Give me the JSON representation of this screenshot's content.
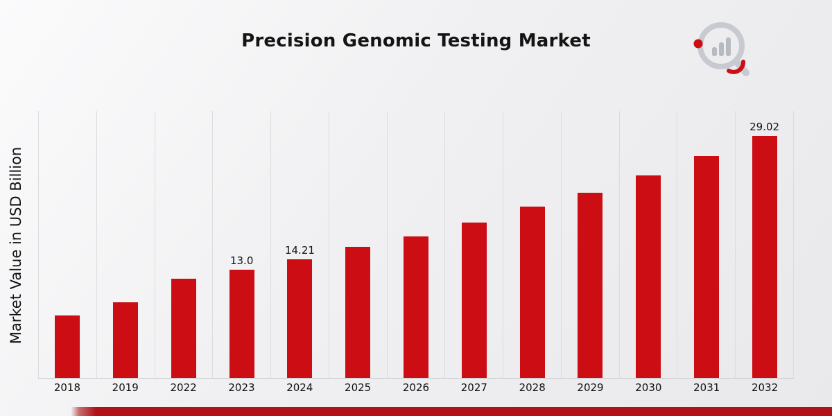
{
  "page": {
    "title": "Precision Genomic Testing Market"
  },
  "chart_data": {
    "type": "bar",
    "title": "Precision Genomic Testing Market",
    "xlabel": "",
    "ylabel": "Market Value in USD Billion",
    "categories": [
      "2018",
      "2019",
      "2022",
      "2023",
      "2024",
      "2025",
      "2026",
      "2027",
      "2028",
      "2029",
      "2030",
      "2031",
      "2032"
    ],
    "values": [
      7.5,
      9.1,
      11.9,
      13.0,
      14.21,
      15.7,
      17.0,
      18.6,
      20.5,
      22.2,
      24.3,
      26.6,
      29.02
    ],
    "bar_labels": [
      "",
      "",
      "",
      "13.0",
      "14.21",
      "",
      "",
      "",
      "",
      "",
      "",
      "",
      "29.02"
    ],
    "ylim": [
      0,
      32
    ],
    "grid": "vertical-category-separators",
    "legend": "none",
    "bar_color": "#cc0d13"
  },
  "branding": {
    "logo_name": "market-research-magnifier-logo",
    "footer_stripe_color": "#b11218",
    "logo_gray": "#c7cad0",
    "logo_bar_gray": "#b6bac1"
  }
}
